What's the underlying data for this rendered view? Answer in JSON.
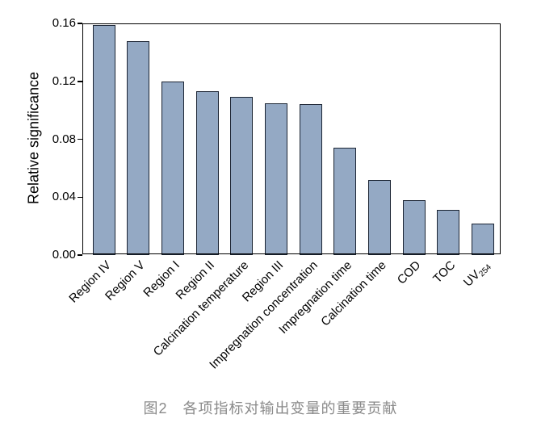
{
  "chart_data": {
    "type": "bar",
    "title": "图2　各项指标对输出变量的重要贡献",
    "ylabel": "Relative significance",
    "xlabel": "",
    "ylim": [
      0,
      0.16
    ],
    "ytick_labels": [
      "0.00",
      "0.04",
      "0.08",
      "0.12",
      "0.16"
    ],
    "grid": false,
    "legend": "none",
    "bar_fill_color": "#94a9c4",
    "bar_border_color": "#1b2433",
    "axis_color": "#000000",
    "caption_color": "#8a8a8a",
    "categories": [
      "Region IV",
      "Region V",
      "Region I",
      "Region II",
      "Calcination temperature",
      "Region III",
      "Impregnation concentration",
      "Impregnation time",
      "Calcination time",
      "COD",
      "TOC",
      {
        "label": "UV",
        "sub": "254"
      }
    ],
    "values": [
      0.159,
      0.148,
      0.12,
      0.113,
      0.109,
      0.105,
      0.104,
      0.074,
      0.052,
      0.038,
      0.031,
      0.022
    ]
  }
}
